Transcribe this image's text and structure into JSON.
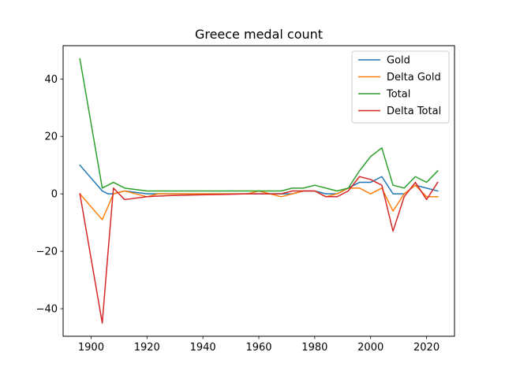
{
  "chart_data": {
    "type": "line",
    "title": "Greece medal count",
    "xlabel": "",
    "ylabel": "",
    "xlim": [
      1890,
      2030
    ],
    "ylim": [
      -49.6,
      51.6
    ],
    "xticks": [
      1900,
      1920,
      1940,
      1960,
      1980,
      2000,
      2020
    ],
    "yticks": [
      -40,
      -20,
      0,
      20,
      40
    ],
    "ytick_labels": [
      "−40",
      "−20",
      "0",
      "20",
      "40"
    ],
    "grid": false,
    "legend_position": "top-right",
    "x": [
      1896,
      1904,
      1906,
      1908,
      1912,
      1920,
      1924,
      1928,
      1932,
      1936,
      1948,
      1952,
      1956,
      1960,
      1964,
      1968,
      1972,
      1976,
      1980,
      1984,
      1988,
      1992,
      1996,
      2000,
      2004,
      2008,
      2012,
      2016,
      2020,
      2024
    ],
    "series": [
      {
        "name": "Gold",
        "color": "#1f77b4",
        "values": [
          10,
          1,
          0,
          0,
          1,
          0,
          0,
          0,
          0,
          0,
          0,
          0,
          0,
          0,
          0,
          0,
          0,
          1,
          1,
          0,
          0,
          2,
          4,
          4,
          6,
          0,
          0,
          3,
          2,
          1
        ]
      },
      {
        "name": "Delta Gold",
        "color": "#ff7f0e",
        "values": [
          0,
          -9,
          -4.5,
          0,
          1,
          -1,
          0,
          0,
          0,
          0,
          0,
          0,
          0,
          1,
          0,
          -1,
          0,
          1,
          1,
          -1,
          0,
          2,
          2,
          0,
          2,
          -6,
          0,
          3,
          -1,
          -1
        ]
      },
      {
        "name": "Total",
        "color": "#2ca02c",
        "values": [
          47,
          2,
          3,
          4,
          2,
          1,
          1,
          1,
          1,
          1,
          1,
          1,
          1,
          1,
          1,
          1,
          2,
          2,
          3,
          2,
          1,
          2,
          8,
          13,
          16,
          3,
          2,
          6,
          4,
          8
        ]
      },
      {
        "name": "Delta Total",
        "color": "#d62728",
        "values": [
          0,
          -45,
          -21,
          2,
          -2,
          -1,
          -0.8,
          -0.6,
          -0.5,
          -0.4,
          -0.2,
          -0.1,
          0,
          0,
          0,
          0,
          1,
          1,
          1,
          -1,
          -1,
          1,
          6,
          5,
          3,
          -13,
          -1,
          4,
          -2,
          4
        ]
      }
    ]
  }
}
